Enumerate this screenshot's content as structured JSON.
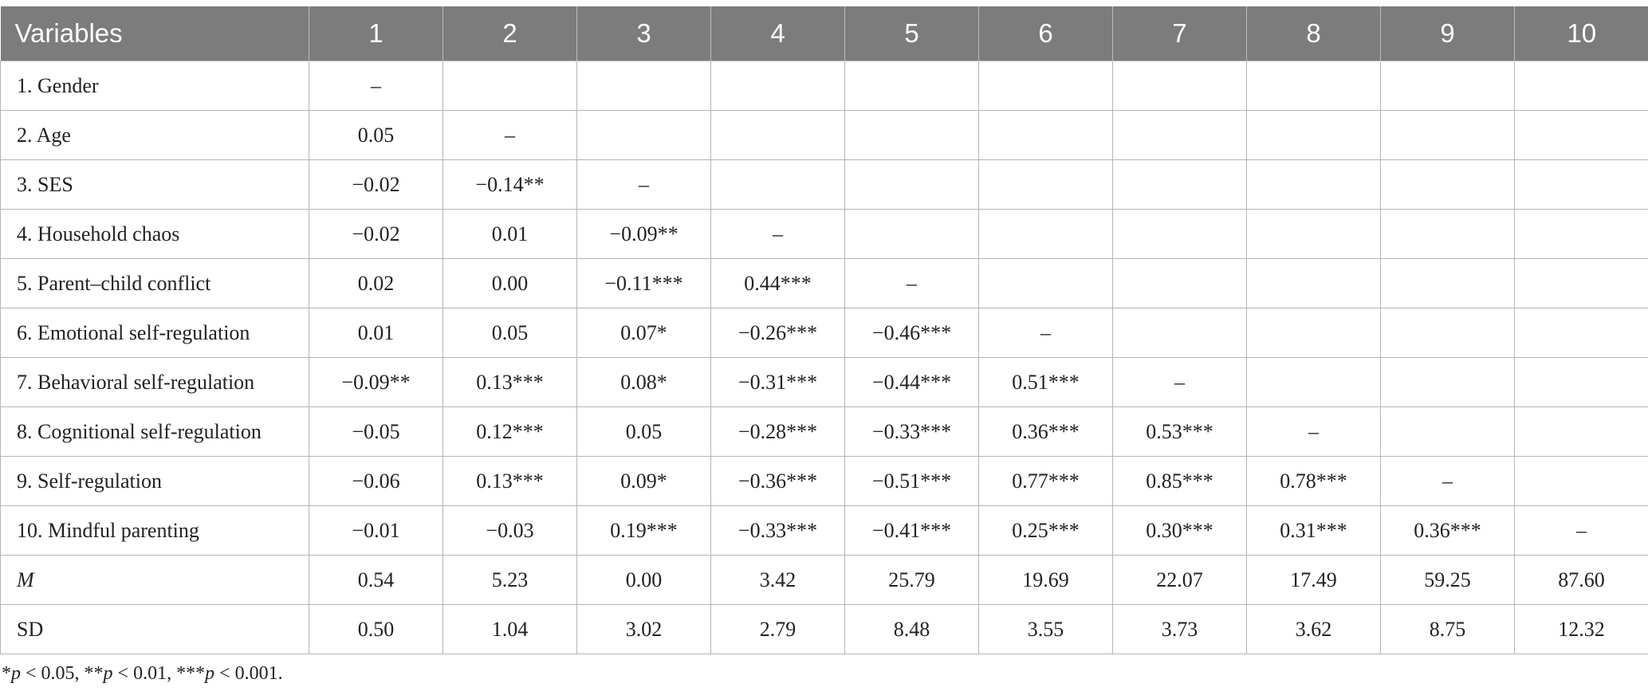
{
  "table": {
    "header": [
      "Variables",
      "1",
      "2",
      "3",
      "4",
      "5",
      "6",
      "7",
      "8",
      "9",
      "10"
    ],
    "rows": [
      {
        "label": "1. Gender",
        "italic": false,
        "cells": [
          "–",
          "",
          "",
          "",
          "",
          "",
          "",
          "",
          "",
          ""
        ]
      },
      {
        "label": "2. Age",
        "italic": false,
        "cells": [
          "0.05",
          "–",
          "",
          "",
          "",
          "",
          "",
          "",
          "",
          ""
        ]
      },
      {
        "label": "3. SES",
        "italic": false,
        "cells": [
          "−0.02",
          "−0.14**",
          "–",
          "",
          "",
          "",
          "",
          "",
          "",
          ""
        ]
      },
      {
        "label": "4. Household chaos",
        "italic": false,
        "cells": [
          "−0.02",
          "0.01",
          "−0.09**",
          "–",
          "",
          "",
          "",
          "",
          "",
          ""
        ]
      },
      {
        "label": "5. Parent–child conflict",
        "italic": false,
        "cells": [
          "0.02",
          "0.00",
          "−0.11***",
          "0.44***",
          "–",
          "",
          "",
          "",
          "",
          ""
        ]
      },
      {
        "label": "6. Emotional self-regulation",
        "italic": false,
        "cells": [
          "0.01",
          "0.05",
          "0.07*",
          "−0.26***",
          "−0.46***",
          "–",
          "",
          "",
          "",
          ""
        ]
      },
      {
        "label": "7. Behavioral self-regulation",
        "italic": false,
        "cells": [
          "−0.09**",
          "0.13***",
          "0.08*",
          "−0.31***",
          "−0.44***",
          "0.51***",
          "–",
          "",
          "",
          ""
        ]
      },
      {
        "label": "8. Cognitional self-regulation",
        "italic": false,
        "cells": [
          "−0.05",
          "0.12***",
          "0.05",
          "−0.28***",
          "−0.33***",
          "0.36***",
          "0.53***",
          "–",
          "",
          ""
        ]
      },
      {
        "label": "9. Self-regulation",
        "italic": false,
        "cells": [
          "−0.06",
          "0.13***",
          "0.09*",
          "−0.36***",
          "−0.51***",
          "0.77***",
          "0.85***",
          "0.78***",
          "–",
          ""
        ]
      },
      {
        "label": "10. Mindful parenting",
        "italic": false,
        "cells": [
          "−0.01",
          "−0.03",
          "0.19***",
          "−0.33***",
          "−0.41***",
          "0.25***",
          "0.30***",
          "0.31***",
          "0.36***",
          "–"
        ]
      },
      {
        "label": "M",
        "italic": true,
        "cells": [
          "0.54",
          "5.23",
          "0.00",
          "3.42",
          "25.79",
          "19.69",
          "22.07",
          "17.49",
          "59.25",
          "87.60"
        ]
      },
      {
        "label": "SD",
        "italic": false,
        "cells": [
          "0.50",
          "1.04",
          "3.02",
          "2.79",
          "8.48",
          "3.55",
          "3.73",
          "3.62",
          "8.75",
          "12.32"
        ]
      }
    ]
  },
  "footnote": {
    "parts": [
      {
        "text": "*",
        "italic": false
      },
      {
        "text": "p",
        "italic": true
      },
      {
        "text": " < 0.05, **",
        "italic": false
      },
      {
        "text": "p",
        "italic": true
      },
      {
        "text": " < 0.01, ***",
        "italic": false
      },
      {
        "text": "p",
        "italic": true
      },
      {
        "text": " < 0.001.",
        "italic": false
      }
    ]
  }
}
